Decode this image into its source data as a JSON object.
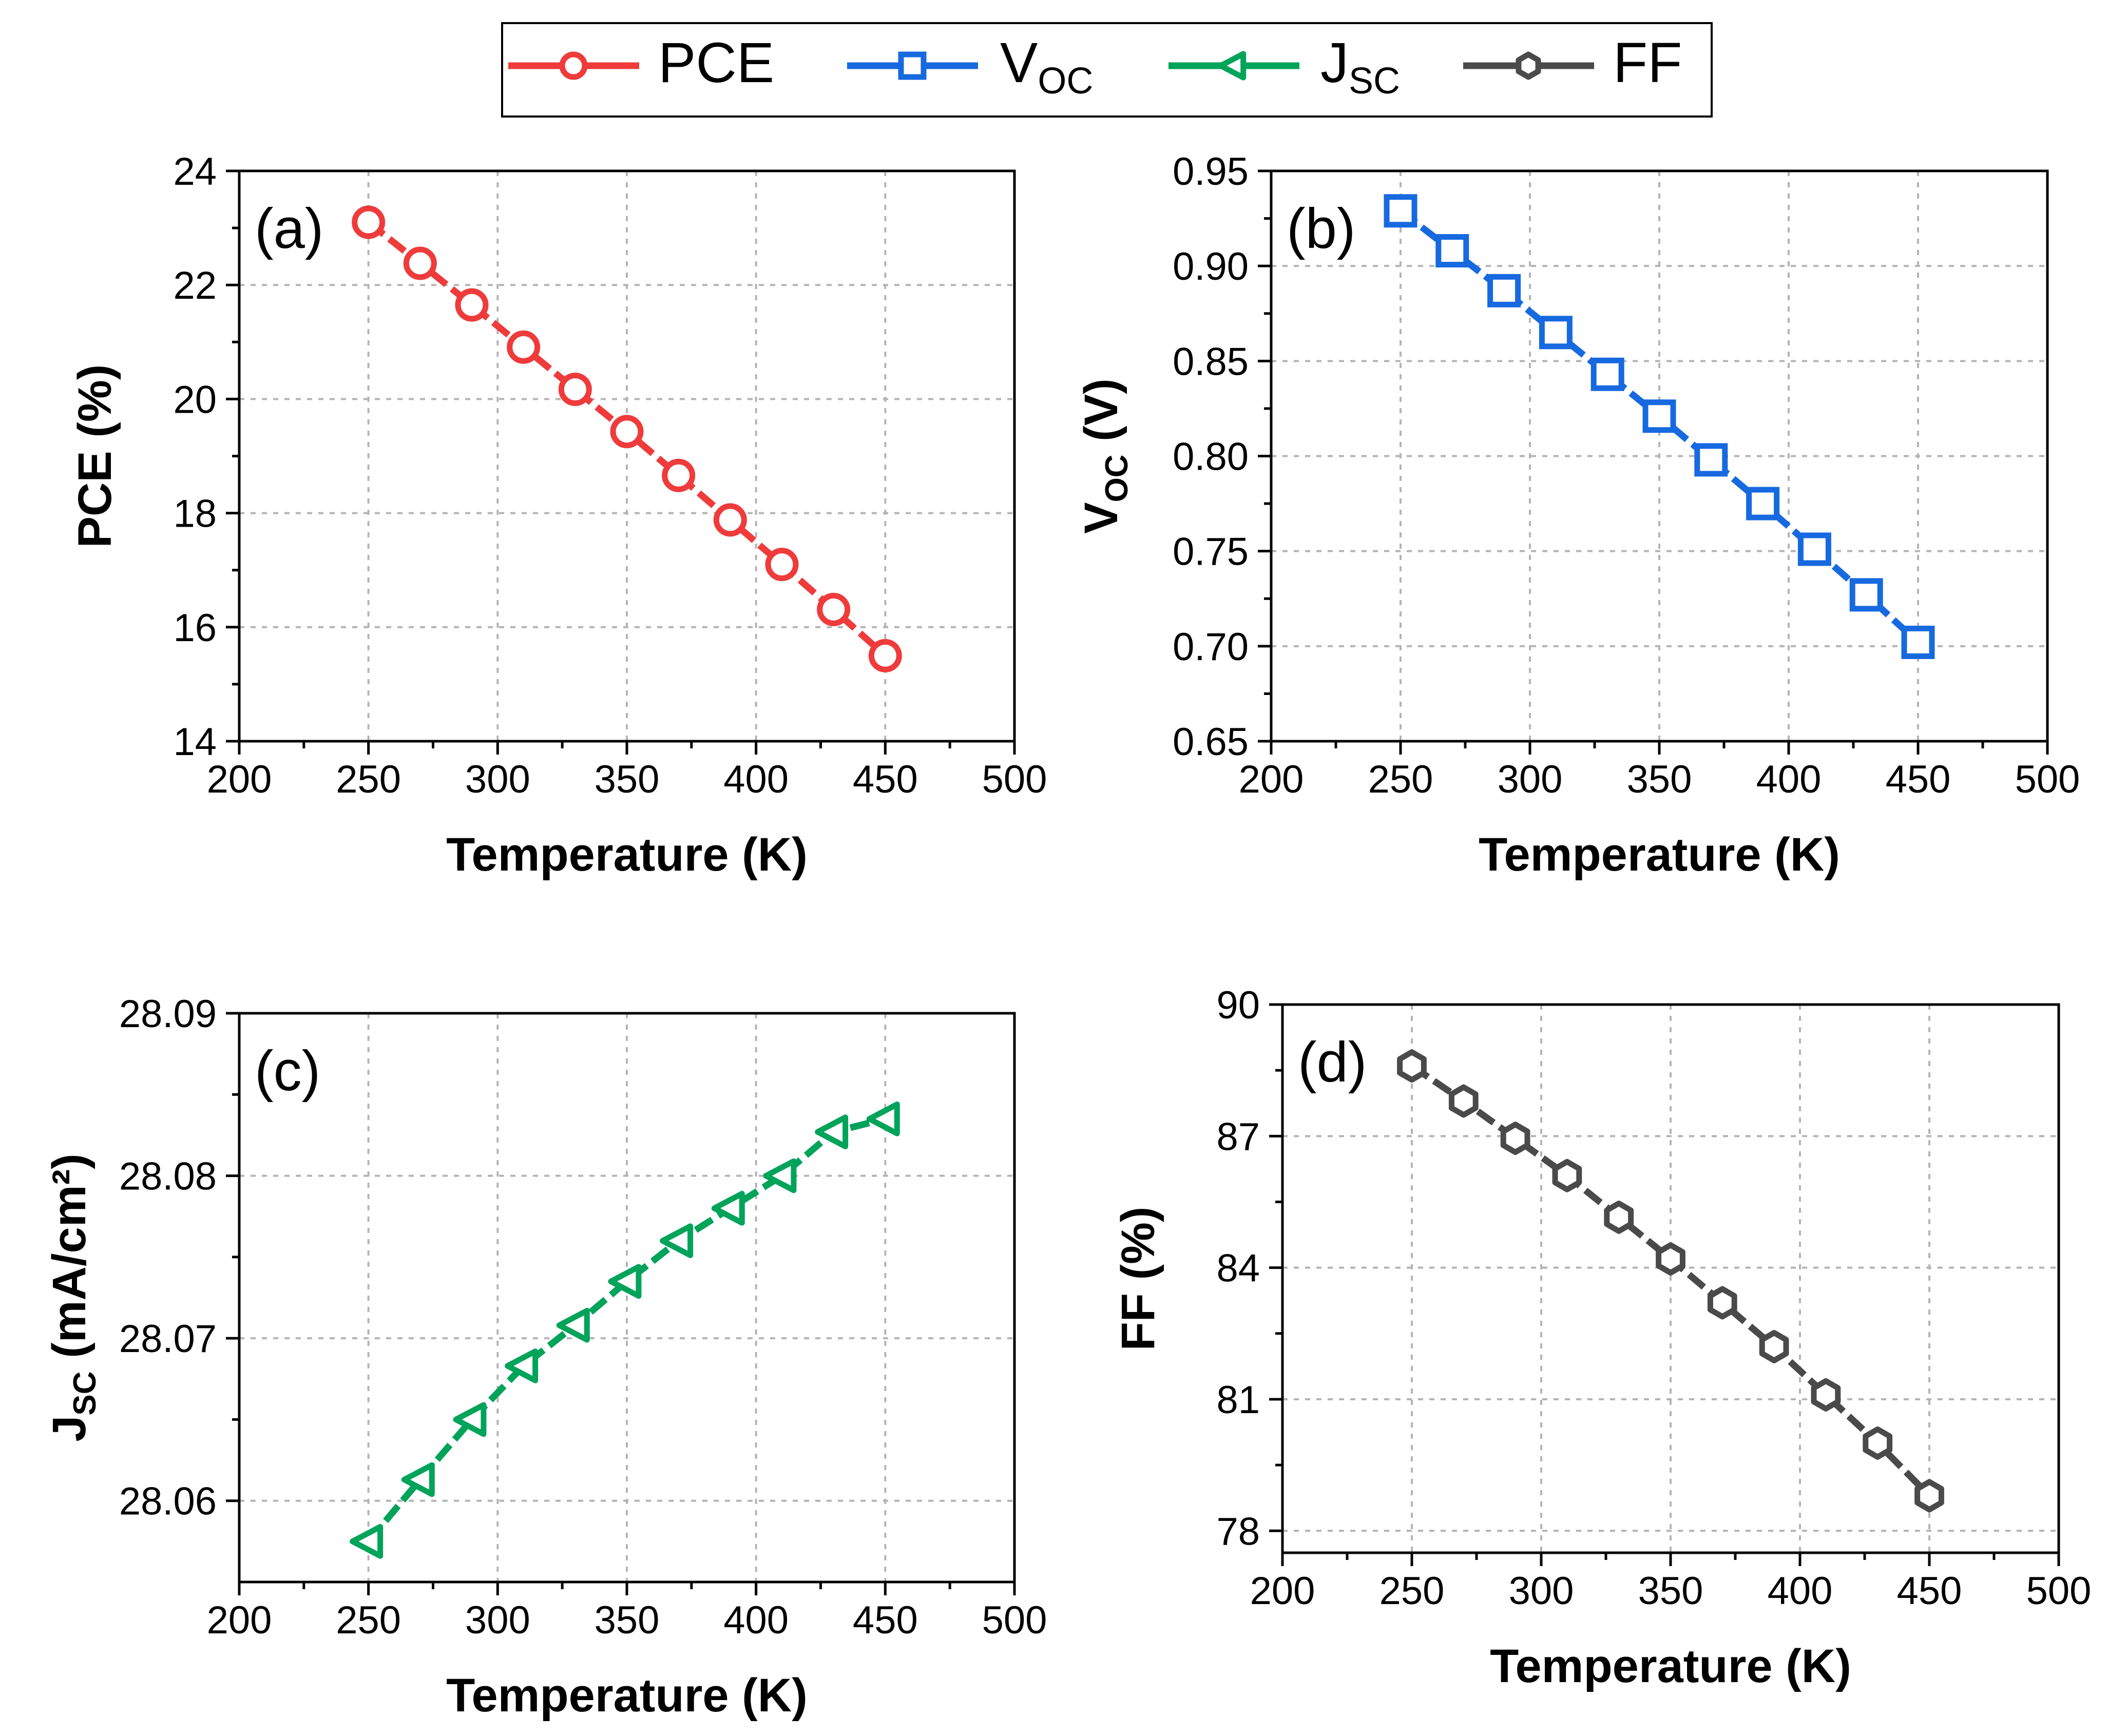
{
  "legend": {
    "items": [
      {
        "series": "PCE",
        "label": "PCE",
        "sub": "",
        "marker": "circle"
      },
      {
        "series": "VOC",
        "label": "V",
        "sub": "OC",
        "marker": "square"
      },
      {
        "series": "JSC",
        "label": "J",
        "sub": "SC",
        "marker": "triangle-left"
      },
      {
        "series": "FF",
        "label": "FF",
        "sub": "",
        "marker": "hexagon"
      }
    ]
  },
  "colors": {
    "PCE": "#ef3b3b",
    "VOC": "#1769e0",
    "JSC": "#00a35a",
    "FF": "#4a4a4a"
  },
  "chart_data": [
    {
      "type": "line",
      "panel": "(a)",
      "series": [
        {
          "name": "PCE",
          "marker": "circle",
          "x": [
            250,
            270,
            290,
            310,
            330,
            350,
            370,
            390,
            410,
            430,
            450
          ],
          "values": [
            23.1,
            22.38,
            21.65,
            20.91,
            20.17,
            19.43,
            18.66,
            17.88,
            17.1,
            16.31,
            15.5
          ]
        }
      ],
      "xlabel": "Temperature (K)",
      "ylabel": {
        "main": "PCE (%)",
        "sub": ""
      },
      "xlim": [
        200,
        500
      ],
      "ylim": [
        14,
        24
      ],
      "xticks": [
        "200",
        "250",
        "300",
        "350",
        "400",
        "450",
        "500"
      ],
      "yticks": [
        "14",
        "16",
        "18",
        "20",
        "22",
        "24"
      ],
      "grid": true
    },
    {
      "type": "line",
      "panel": "(b)",
      "series": [
        {
          "name": "VOC",
          "marker": "square",
          "x": [
            250,
            270,
            290,
            310,
            330,
            350,
            370,
            390,
            410,
            430,
            450
          ],
          "values": [
            0.929,
            0.908,
            0.887,
            0.865,
            0.843,
            0.821,
            0.798,
            0.775,
            0.751,
            0.727,
            0.702
          ]
        }
      ],
      "xlabel": "Temperature (K)",
      "ylabel": {
        "main": "V",
        "sub": "OC",
        "unit": " (V)"
      },
      "xlim": [
        200,
        500
      ],
      "ylim": [
        0.65,
        0.95
      ],
      "xticks": [
        "200",
        "250",
        "300",
        "350",
        "400",
        "450",
        "500"
      ],
      "yticks": [
        "0.65",
        "0.70",
        "0.75",
        "0.80",
        "0.85",
        "0.90",
        "0.95"
      ],
      "grid": true
    },
    {
      "type": "line",
      "panel": "(c)",
      "series": [
        {
          "name": "JSC",
          "marker": "triangle-left",
          "x": [
            250,
            270,
            290,
            310,
            330,
            350,
            370,
            390,
            410,
            430,
            450
          ],
          "values": [
            28.0575,
            28.0613,
            28.065,
            28.0683,
            28.0708,
            28.0735,
            28.076,
            28.078,
            28.08,
            28.0827,
            28.0835
          ]
        }
      ],
      "xlabel": "Temperature (K)",
      "ylabel": {
        "main": "J",
        "sub": "SC",
        "unit": " (mA/cm²)"
      },
      "xlim": [
        200,
        500
      ],
      "ylim": [
        28.055,
        28.09
      ],
      "xticks": [
        "200",
        "250",
        "300",
        "350",
        "400",
        "450",
        "500"
      ],
      "yticks": [
        "28.06",
        "28.07",
        "28.08",
        "28.09"
      ],
      "grid": true
    },
    {
      "type": "line",
      "panel": "(d)",
      "series": [
        {
          "name": "FF",
          "marker": "hexagon",
          "x": [
            250,
            270,
            290,
            310,
            330,
            350,
            370,
            390,
            410,
            430,
            450
          ],
          "values": [
            88.6,
            87.8,
            86.95,
            86.1,
            85.15,
            84.2,
            83.2,
            82.2,
            81.1,
            80.0,
            78.8
          ]
        }
      ],
      "xlabel": "Temperature (K)",
      "ylabel": {
        "main": "FF (%)",
        "sub": ""
      },
      "xlim": [
        200,
        500
      ],
      "ylim": [
        77.5,
        90
      ],
      "xticks": [
        "200",
        "250",
        "300",
        "350",
        "400",
        "450",
        "500"
      ],
      "yticks": [
        "78",
        "81",
        "84",
        "87",
        "90"
      ],
      "grid": true
    }
  ]
}
